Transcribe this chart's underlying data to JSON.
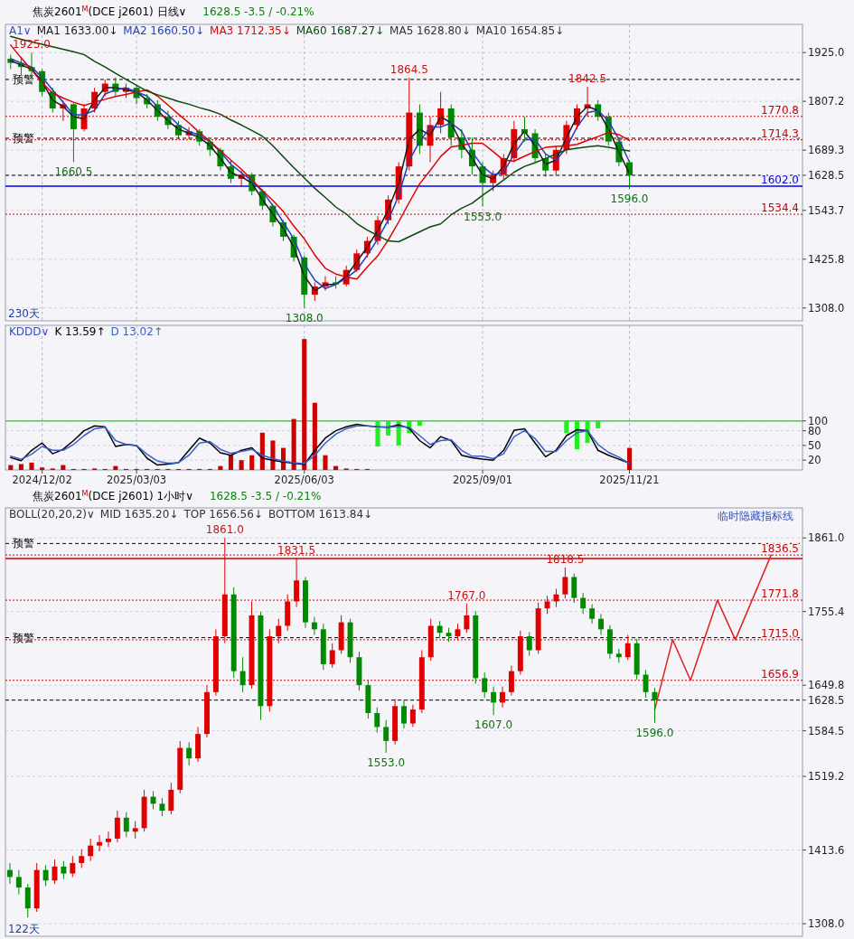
{
  "chart_data": [
    {
      "type": "candlestick",
      "title": "焦炭2601$^{M}$(DCE j2601) 日线∨",
      "subtitle": "1628.5   -3.5 / -0.21%",
      "categories": [
        null,
        null,
        null,
        "2024/12/02",
        null,
        null,
        null,
        null,
        null,
        null,
        null,
        null,
        "2025/03/03",
        null,
        null,
        null,
        null,
        null,
        null,
        null,
        null,
        null,
        null,
        null,
        null,
        null,
        null,
        null,
        "2025/06/03",
        null,
        null,
        null,
        null,
        null,
        null,
        null,
        null,
        null,
        null,
        null,
        null,
        null,
        null,
        null,
        null,
        "2025/09/01",
        null,
        null,
        null,
        null,
        null,
        null,
        null,
        null,
        null,
        null,
        null,
        null,
        null,
        "2025/11/21",
        null,
        null,
        null,
        null,
        null,
        null,
        null,
        null,
        null,
        null,
        null,
        null,
        null,
        null,
        null,
        null
      ],
      "ohlc": [
        [
          1910,
          1920,
          1885,
          1900
        ],
        [
          1900,
          1915,
          1870,
          1890
        ],
        [
          1890,
          1925,
          1860,
          1880
        ],
        [
          1880,
          1885,
          1820,
          1830
        ],
        [
          1830,
          1840,
          1780,
          1790
        ],
        [
          1790,
          1810,
          1760,
          1800
        ],
        [
          1800,
          1805,
          1660.5,
          1740
        ],
        [
          1740,
          1800,
          1735,
          1790
        ],
        [
          1790,
          1840,
          1780,
          1830
        ],
        [
          1830,
          1860,
          1820,
          1850
        ],
        [
          1850,
          1865,
          1820,
          1830
        ],
        [
          1830,
          1850,
          1815,
          1840
        ],
        [
          1840,
          1845,
          1800,
          1815
        ],
        [
          1815,
          1825,
          1790,
          1800
        ],
        [
          1800,
          1810,
          1760,
          1770
        ],
        [
          1770,
          1785,
          1740,
          1750
        ],
        [
          1750,
          1760,
          1715,
          1725
        ],
        [
          1725,
          1745,
          1715,
          1735
        ],
        [
          1735,
          1740,
          1700,
          1710
        ],
        [
          1710,
          1715,
          1675,
          1690
        ],
        [
          1690,
          1695,
          1640,
          1650
        ],
        [
          1650,
          1665,
          1610,
          1620
        ],
        [
          1620,
          1640,
          1600,
          1630
        ],
        [
          1630,
          1635,
          1580,
          1590
        ],
        [
          1590,
          1595,
          1545,
          1555
        ],
        [
          1555,
          1560,
          1505,
          1515
        ],
        [
          1515,
          1520,
          1470,
          1480
        ],
        [
          1480,
          1485,
          1420,
          1430
        ],
        [
          1430,
          1435,
          1308,
          1340
        ],
        [
          1340,
          1370,
          1325,
          1360
        ],
        [
          1360,
          1385,
          1350,
          1370
        ],
        [
          1370,
          1385,
          1355,
          1365
        ],
        [
          1365,
          1410,
          1360,
          1400
        ],
        [
          1400,
          1450,
          1395,
          1440
        ],
        [
          1440,
          1480,
          1430,
          1470
        ],
        [
          1470,
          1530,
          1460,
          1520
        ],
        [
          1520,
          1580,
          1510,
          1570
        ],
        [
          1570,
          1660,
          1560,
          1650
        ],
        [
          1650,
          1864.5,
          1640,
          1780
        ],
        [
          1780,
          1800,
          1680,
          1700
        ],
        [
          1700,
          1770,
          1660,
          1750
        ],
        [
          1750,
          1830,
          1730,
          1790
        ],
        [
          1790,
          1800,
          1700,
          1720
        ],
        [
          1720,
          1740,
          1670,
          1690
        ],
        [
          1690,
          1720,
          1630,
          1650
        ],
        [
          1650,
          1660,
          1553,
          1610
        ],
        [
          1610,
          1640,
          1590,
          1630
        ],
        [
          1630,
          1680,
          1620,
          1670
        ],
        [
          1670,
          1760,
          1660,
          1740
        ],
        [
          1740,
          1770,
          1710,
          1730
        ],
        [
          1730,
          1740,
          1660,
          1670
        ],
        [
          1670,
          1680,
          1625,
          1640
        ],
        [
          1640,
          1700,
          1630,
          1690
        ],
        [
          1690,
          1760,
          1680,
          1750
        ],
        [
          1750,
          1800,
          1740,
          1790
        ],
        [
          1790,
          1842.5,
          1770,
          1800
        ],
        [
          1800,
          1810,
          1760,
          1770
        ],
        [
          1770,
          1780,
          1700,
          1710
        ],
        [
          1710,
          1720,
          1650,
          1660
        ],
        [
          1660,
          1665,
          1596,
          1628.5
        ],
        null,
        null,
        null,
        null,
        null,
        null,
        null,
        null,
        null,
        null,
        null,
        null,
        null,
        null,
        null,
        null
      ],
      "series": [
        {
          "type": "line",
          "name": "MA1 1633.00↓",
          "color": "#1a1a1a",
          "values": [
            1905,
            1895,
            1885,
            1855,
            1810,
            1795,
            1770,
            1765,
            1810,
            1840,
            1840,
            1835,
            1830,
            1810,
            1785,
            1760,
            1740,
            1730,
            1720,
            1700,
            1670,
            1635,
            1625,
            1610,
            1570,
            1535,
            1500,
            1455,
            1385,
            1350,
            1365,
            1365,
            1385,
            1420,
            1455,
            1495,
            1545,
            1610,
            1715,
            1740,
            1725,
            1770,
            1755,
            1705,
            1670,
            1630,
            1620,
            1650,
            1705,
            1735,
            1700,
            1655,
            1665,
            1720,
            1770,
            1795,
            1785,
            1740,
            1685,
            1633,
            null,
            null,
            null,
            null,
            null,
            null,
            null,
            null,
            null,
            null,
            null,
            null,
            null,
            null,
            null,
            null
          ]
        },
        {
          "type": "line",
          "name": "MA2 1660.50↓",
          "color": "#1f3fbf",
          "values": [
            1910,
            1900,
            1890,
            1865,
            1835,
            1805,
            1775,
            1775,
            1785,
            1825,
            1835,
            1840,
            1830,
            1820,
            1795,
            1775,
            1750,
            1735,
            1725,
            1710,
            1685,
            1655,
            1635,
            1615,
            1590,
            1555,
            1515,
            1475,
            1415,
            1375,
            1355,
            1365,
            1380,
            1400,
            1435,
            1475,
            1520,
            1580,
            1665,
            1710,
            1745,
            1745,
            1755,
            1735,
            1685,
            1650,
            1630,
            1635,
            1680,
            1715,
            1715,
            1680,
            1665,
            1695,
            1745,
            1780,
            1785,
            1760,
            1715,
            1660.5,
            null,
            null,
            null,
            null,
            null,
            null,
            null,
            null,
            null,
            null,
            null,
            null,
            null,
            null,
            null,
            null
          ]
        },
        {
          "type": "line",
          "name": "MA3 1712.35↓",
          "color": "#e00000",
          "values": [
            1943,
            1912,
            1883,
            1852,
            1827,
            1815,
            1805,
            1797,
            1805,
            1812,
            1819,
            1824,
            1830,
            1835,
            1820,
            1798,
            1776,
            1755,
            1732,
            1711,
            1688,
            1665,
            1643,
            1618,
            1592,
            1568,
            1541,
            1506,
            1475,
            1436,
            1404,
            1390,
            1383,
            1378,
            1407,
            1434,
            1472,
            1516,
            1563,
            1608,
            1640,
            1674,
            1697,
            1701,
            1706,
            1706,
            1686,
            1665,
            1663,
            1675,
            1686,
            1696,
            1698,
            1700,
            1703,
            1713,
            1722,
            1732,
            1727,
            1712.35,
            null,
            null,
            null,
            null,
            null,
            null,
            null,
            null,
            null,
            null,
            null,
            null,
            null,
            null,
            null,
            null
          ]
        },
        {
          "type": "line",
          "name": "MA60 1687.27↓",
          "color": "#0a4a0a",
          "values": [
            1964,
            1957,
            1951,
            1945,
            1939,
            1933,
            1927,
            1920,
            1904,
            1890,
            1875,
            1860,
            1846,
            1832,
            1823,
            1815,
            1807,
            1800,
            1792,
            1785,
            1776,
            1762,
            1750,
            1737,
            1723,
            1700,
            1673,
            1647,
            1622,
            1597,
            1575,
            1552,
            1535,
            1512,
            1496,
            1483,
            1470,
            1468,
            1480,
            1492,
            1504,
            1511,
            1533,
            1549,
            1561,
            1580,
            1598,
            1617,
            1636,
            1650,
            1659,
            1669,
            1680,
            1690,
            1694,
            1697,
            1700,
            1696,
            1691,
            1687.27,
            null,
            null,
            null,
            null,
            null,
            null,
            null,
            null,
            null,
            null,
            null,
            null,
            null,
            null,
            null,
            null
          ]
        }
      ],
      "legend": "top left",
      "legend_title": "A1∨",
      "ylim": [
        1277,
        1993
      ],
      "yticks": [
        {
          "value": 1925,
          "label": "1925.0"
        },
        {
          "value": 1807.2,
          "label": "1807.2"
        },
        {
          "value": 1689.3,
          "label": "1689.3"
        },
        {
          "value": 1628.5,
          "label": "1628.5"
        },
        {
          "value": 1543.7,
          "label": "1543.7"
        },
        {
          "value": 1425.8,
          "label": "1425.8"
        },
        {
          "value": 1308,
          "label": "1308.0"
        }
      ],
      "tick_labels": "y",
      "grid": true,
      "ref_lines": [
        {
          "axis": "y",
          "value": 1860,
          "label": "预警",
          "color": "#000000",
          "line_style": "dashed"
        },
        {
          "axis": "y",
          "value": 1718,
          "label": "预警",
          "color": "#000000",
          "line_style": "dashed"
        },
        {
          "axis": "y",
          "value": 1628.5,
          "color": "#000000",
          "line_style": "dashed"
        },
        {
          "axis": "y",
          "value": 1602,
          "label": "1602.0",
          "color": "#0000ee",
          "line_style": "solid"
        },
        {
          "axis": "y",
          "value": 1770.8,
          "label": "1770.8",
          "color": "#cc0000",
          "line_style": "dotted"
        },
        {
          "axis": "y",
          "value": 1714.3,
          "label": "1714.3",
          "color": "#cc0000",
          "line_style": "dotted"
        },
        {
          "axis": "y",
          "value": 1534.4,
          "label": "1534.4",
          "color": "#cc0000",
          "line_style": "dotted"
        }
      ],
      "annotations": [
        "MA5 1628.80↓",
        "MA10 1654.85↓",
        {
          "text": "1925.0",
          "y": 1925
        },
        {
          "text": "1660.5",
          "y": 1660.5
        },
        {
          "text": "1864.5",
          "y": 1864.5
        },
        {
          "text": "1842.5",
          "y": 1842.5
        },
        {
          "text": "1553.0",
          "y": 1553
        },
        {
          "text": "1308.0",
          "y": 1308
        },
        {
          "text": "1596.0",
          "y": 1596
        },
        "230天"
      ]
    },
    {
      "type": "line",
      "categories": [
        null,
        null,
        null,
        "2024/12/02",
        null,
        null,
        null,
        null,
        null,
        null,
        null,
        null,
        "2025/03/03",
        null,
        null,
        null,
        null,
        null,
        null,
        null,
        null,
        null,
        null,
        null,
        null,
        null,
        null,
        null,
        "2025/06/03",
        null,
        null,
        null,
        null,
        null,
        null,
        null,
        null,
        null,
        null,
        null,
        null,
        null,
        null,
        null,
        null,
        "2025/09/01",
        null,
        null,
        null,
        null,
        null,
        null,
        null,
        null,
        null,
        null,
        null,
        null,
        null,
        "2025/11/21",
        null,
        null,
        null,
        null,
        null,
        null,
        null,
        null,
        null,
        null,
        null,
        null,
        null,
        null,
        null,
        null
      ],
      "series": [
        {
          "type": "bar",
          "color": "#cc0000",
          "values": [
            10,
            12,
            15,
            5,
            3,
            10,
            2,
            2,
            3,
            2,
            8,
            2,
            2,
            2,
            2,
            2,
            2,
            2,
            2,
            2,
            8,
            30,
            20,
            30,
            76,
            60,
            45,
            104,
            267,
            137,
            30,
            8,
            3,
            2,
            2,
            null,
            null,
            null,
            null,
            null,
            null,
            null,
            null,
            null,
            null,
            null,
            null,
            null,
            null,
            null,
            null,
            null,
            null,
            null,
            null,
            null,
            null,
            null,
            null,
            45,
            null,
            null,
            null,
            null,
            null,
            null,
            null,
            null,
            null,
            null,
            null,
            null,
            null,
            null,
            null,
            null
          ]
        },
        {
          "type": "bar",
          "color": "#22ee22",
          "values": [
            null,
            null,
            null,
            null,
            null,
            null,
            null,
            null,
            null,
            null,
            null,
            null,
            null,
            null,
            null,
            null,
            null,
            null,
            null,
            null,
            null,
            null,
            null,
            null,
            null,
            null,
            null,
            null,
            null,
            null,
            null,
            null,
            null,
            null,
            null,
            -52,
            -30,
            -50,
            -25,
            -10,
            null,
            null,
            null,
            null,
            null,
            null,
            null,
            null,
            null,
            null,
            null,
            null,
            null,
            -25,
            -58,
            -45,
            -15,
            null,
            null,
            null,
            null,
            null,
            null,
            null,
            null,
            null,
            null,
            null,
            null,
            null,
            null,
            null,
            null,
            null,
            null,
            null
          ],
          "base": [
            null,
            null,
            null,
            null,
            null,
            null,
            null,
            null,
            null,
            null,
            null,
            null,
            null,
            null,
            null,
            null,
            null,
            null,
            null,
            null,
            null,
            null,
            null,
            null,
            null,
            null,
            null,
            null,
            null,
            null,
            null,
            null,
            null,
            null,
            null,
            100,
            100,
            100,
            100,
            100,
            null,
            null,
            null,
            null,
            null,
            null,
            null,
            null,
            null,
            null,
            null,
            null,
            null,
            100,
            100,
            100,
            100,
            null,
            null,
            null,
            null,
            null,
            null,
            null,
            null,
            null,
            null,
            null,
            null,
            null,
            null,
            null,
            null,
            null,
            null,
            null
          ]
        },
        {
          "type": "line",
          "name": "K 13.59↑",
          "color": "#000000",
          "values": [
            25,
            19,
            40,
            55,
            33,
            42,
            60,
            80,
            90,
            88,
            48,
            52,
            50,
            24,
            10,
            12,
            15,
            40,
            65,
            55,
            35,
            30,
            40,
            45,
            24,
            20,
            16,
            14,
            11,
            40,
            65,
            80,
            88,
            93,
            90,
            88,
            87,
            92,
            85,
            60,
            45,
            68,
            60,
            30,
            25,
            22,
            20,
            40,
            81,
            84,
            55,
            27,
            40,
            70,
            82,
            80,
            40,
            30,
            22,
            13.59,
            null,
            null,
            null,
            null,
            null,
            null,
            null,
            null,
            null,
            null,
            null,
            null,
            null,
            null,
            null,
            null
          ]
        },
        {
          "type": "line",
          "name": "D 13.02↑",
          "color": "#3a5fcd",
          "values": [
            28,
            22,
            32,
            48,
            40,
            40,
            52,
            70,
            84,
            87,
            60,
            52,
            50,
            32,
            18,
            14,
            15,
            30,
            55,
            58,
            42,
            34,
            38,
            42,
            30,
            23,
            18,
            15,
            13,
            30,
            55,
            73,
            84,
            90,
            90,
            88,
            87,
            89,
            87,
            70,
            52,
            60,
            62,
            40,
            28,
            28,
            23,
            33,
            68,
            80,
            64,
            38,
            38,
            60,
            76,
            80,
            52,
            36,
            26,
            13.02,
            null,
            null,
            null,
            null,
            null,
            null,
            null,
            null,
            null,
            null,
            null,
            null,
            null,
            null,
            null,
            null
          ]
        }
      ],
      "legend": "top left",
      "legend_title": "KDDD∨",
      "ylim": [
        0,
        295
      ],
      "yticks": [
        20,
        50,
        80,
        100
      ],
      "grid": true,
      "ref_lines": [
        {
          "axis": "y",
          "value": 100,
          "color": "#33dd33",
          "line_style": "solid"
        }
      ]
    },
    {
      "type": "candlestick",
      "title": "焦炭2601$^{M}$(DCE j2601) 1小时∨",
      "subtitle": "1628.5   -3.5 / -0.21%",
      "categories": [
        null,
        null,
        null,
        null,
        null,
        null,
        null,
        null,
        null,
        null,
        null,
        null,
        null,
        null,
        null,
        null,
        null,
        null,
        null,
        null,
        null,
        null,
        null,
        null,
        null,
        null,
        null,
        null,
        null,
        null,
        null,
        null,
        null,
        null,
        null,
        null,
        null,
        null,
        null,
        null,
        null,
        null,
        null,
        null,
        null,
        null,
        null,
        null,
        null,
        null,
        null,
        null,
        null,
        null,
        null,
        null,
        null,
        null,
        null,
        null,
        null,
        null,
        null,
        null,
        null,
        null,
        null,
        null,
        null,
        null,
        null,
        null,
        null,
        null,
        null,
        null,
        null,
        null,
        null,
        null,
        null,
        null,
        null,
        null,
        null,
        null,
        null,
        null,
        null
      ],
      "ohlc": [
        [
          1385,
          1395,
          1365,
          1375
        ],
        [
          1375,
          1385,
          1350,
          1360
        ],
        [
          1360,
          1365,
          1317,
          1330
        ],
        [
          1330,
          1395,
          1325,
          1385
        ],
        [
          1385,
          1392,
          1362,
          1370
        ],
        [
          1370,
          1400,
          1365,
          1390
        ],
        [
          1390,
          1398,
          1372,
          1380
        ],
        [
          1380,
          1405,
          1375,
          1395
        ],
        [
          1395,
          1415,
          1388,
          1405
        ],
        [
          1405,
          1430,
          1398,
          1420
        ],
        [
          1420,
          1435,
          1412,
          1425
        ],
        [
          1425,
          1440,
          1418,
          1430
        ],
        [
          1430,
          1470,
          1425,
          1460
        ],
        [
          1460,
          1468,
          1432,
          1440
        ],
        [
          1440,
          1455,
          1430,
          1445
        ],
        [
          1445,
          1500,
          1440,
          1490
        ],
        [
          1490,
          1498,
          1472,
          1480
        ],
        [
          1480,
          1488,
          1462,
          1470
        ],
        [
          1470,
          1510,
          1465,
          1500
        ],
        [
          1500,
          1570,
          1495,
          1560
        ],
        [
          1560,
          1568,
          1535,
          1545
        ],
        [
          1545,
          1590,
          1540,
          1580
        ],
        [
          1580,
          1650,
          1575,
          1640
        ],
        [
          1640,
          1730,
          1635,
          1720
        ],
        [
          1720,
          1861,
          1710,
          1780
        ],
        [
          1780,
          1790,
          1660,
          1670
        ],
        [
          1670,
          1690,
          1640,
          1650
        ],
        [
          1650,
          1770,
          1645,
          1750
        ],
        [
          1750,
          1755,
          1600,
          1620
        ],
        [
          1620,
          1730,
          1612,
          1720
        ],
        [
          1720,
          1745,
          1710,
          1735
        ],
        [
          1735,
          1780,
          1728,
          1770
        ],
        [
          1770,
          1831.5,
          1762,
          1800
        ],
        [
          1800,
          1805,
          1732,
          1740
        ],
        [
          1740,
          1748,
          1722,
          1730
        ],
        [
          1730,
          1738,
          1672,
          1680
        ],
        [
          1680,
          1710,
          1675,
          1700
        ],
        [
          1700,
          1750,
          1695,
          1740
        ],
        [
          1740,
          1745,
          1682,
          1690
        ],
        [
          1690,
          1698,
          1642,
          1650
        ],
        [
          1650,
          1658,
          1602,
          1610
        ],
        [
          1610,
          1618,
          1582,
          1590
        ],
        [
          1590,
          1600,
          1553,
          1570
        ],
        [
          1570,
          1630,
          1565,
          1620
        ],
        [
          1620,
          1628,
          1588,
          1595
        ],
        [
          1595,
          1622,
          1590,
          1615
        ],
        [
          1615,
          1700,
          1610,
          1690
        ],
        [
          1690,
          1745,
          1685,
          1735
        ],
        [
          1735,
          1742,
          1718,
          1725
        ],
        [
          1725,
          1732,
          1712,
          1720
        ],
        [
          1720,
          1738,
          1714,
          1730
        ],
        [
          1730,
          1767,
          1725,
          1750
        ],
        [
          1750,
          1756,
          1652,
          1660
        ],
        [
          1660,
          1668,
          1632,
          1640
        ],
        [
          1640,
          1648,
          1607,
          1625
        ],
        [
          1625,
          1648,
          1618,
          1640
        ],
        [
          1640,
          1678,
          1635,
          1670
        ],
        [
          1670,
          1728,
          1665,
          1720
        ],
        [
          1720,
          1726,
          1692,
          1700
        ],
        [
          1700,
          1768,
          1695,
          1760
        ],
        [
          1760,
          1778,
          1752,
          1770
        ],
        [
          1770,
          1788,
          1762,
          1780
        ],
        [
          1780,
          1818.5,
          1774,
          1805
        ],
        [
          1805,
          1810,
          1768,
          1775
        ],
        [
          1775,
          1782,
          1752,
          1760
        ],
        [
          1760,
          1766,
          1738,
          1745
        ],
        [
          1745,
          1752,
          1722,
          1730
        ],
        [
          1730,
          1736,
          1688,
          1695
        ],
        [
          1695,
          1702,
          1682,
          1690
        ],
        [
          1690,
          1722,
          1686,
          1710
        ],
        [
          1710,
          1716,
          1658,
          1665
        ],
        [
          1665,
          1672,
          1632,
          1640
        ],
        [
          1640,
          1646,
          1596,
          1628.5
        ],
        null,
        null,
        null,
        null,
        null,
        null,
        null,
        null,
        null,
        null,
        null,
        null,
        null,
        null,
        null,
        null
      ],
      "series": [
        {
          "type": "line",
          "color": "#e02020",
          "values": [
            null,
            null,
            null,
            null,
            null,
            null,
            null,
            null,
            null,
            null,
            null,
            null,
            null,
            null,
            null,
            null,
            null,
            null,
            null,
            null,
            null,
            null,
            null,
            null,
            null,
            null,
            null,
            null,
            null,
            null,
            null,
            null,
            null,
            null,
            null,
            null,
            null,
            null,
            null,
            null,
            null,
            null,
            null,
            null,
            null,
            null,
            null,
            null,
            null,
            null,
            null,
            null,
            null,
            null,
            null,
            null,
            null,
            null,
            null,
            null,
            null,
            null,
            null,
            null,
            null,
            null,
            null,
            null,
            null,
            null,
            null,
            null,
            1615,
            null,
            1715,
            null,
            1656.9,
            null,
            null,
            1771.8,
            null,
            1715,
            null,
            null,
            null,
            1836.5,
            null,
            null,
            null
          ]
        }
      ],
      "legend": "top right",
      "legend_title": "临时隐藏指标线",
      "ylim": [
        1290,
        1904
      ],
      "yticks": [
        {
          "value": 1861,
          "label": "1861.0"
        },
        {
          "value": 1755.4,
          "label": "1755.4"
        },
        {
          "value": 1649.8,
          "label": "1649.8"
        },
        {
          "value": 1628.5,
          "label": "1628.5"
        },
        {
          "value": 1584.5,
          "label": "1584.5"
        },
        {
          "value": 1519.2,
          "label": "1519.2"
        },
        {
          "value": 1413.6,
          "label": "1413.6"
        },
        {
          "value": 1308,
          "label": "1308.0"
        }
      ],
      "tick_labels": "y",
      "grid": "y",
      "ref_lines": [
        {
          "axis": "y",
          "value": 1853,
          "label": "预警",
          "color": "#000000",
          "line_style": "dashed"
        },
        {
          "axis": "y",
          "value": 1718,
          "label": "预警",
          "color": "#000000",
          "line_style": "dashed"
        },
        {
          "axis": "y",
          "value": 1628.5,
          "color": "#000000",
          "line_style": "dashed"
        },
        {
          "axis": "y",
          "value": 1831.5,
          "color": "#cc0000",
          "line_style": "solid"
        },
        {
          "axis": "y",
          "value": 1836.5,
          "label": "1836.5",
          "color": "#cc0000",
          "line_style": "dotted"
        },
        {
          "axis": "y",
          "value": 1771.8,
          "label": "1771.8",
          "color": "#cc0000",
          "line_style": "dotted"
        },
        {
          "axis": "y",
          "value": 1715,
          "label": "1715.0",
          "color": "#cc0000",
          "line_style": "dotted"
        },
        {
          "axis": "y",
          "value": 1656.9,
          "label": "1656.9",
          "color": "#cc0000",
          "line_style": "dotted"
        }
      ],
      "annotations": [
        "BOLL(20,20,2)∨",
        "MID 1635.20↓",
        "TOP 1656.56↓",
        "BOTTOM 1613.84↓",
        {
          "text": "1861.0",
          "y": 1861
        },
        {
          "text": "1831.5",
          "y": 1831.5
        },
        {
          "text": "1767.0",
          "y": 1767
        },
        {
          "text": "1818.5",
          "y": 1818.5
        },
        {
          "text": "1553.0",
          "y": 1553
        },
        {
          "text": "1607.0",
          "y": 1607
        },
        {
          "text": "1596.0",
          "y": 1596
        },
        "122天"
      ]
    }
  ]
}
